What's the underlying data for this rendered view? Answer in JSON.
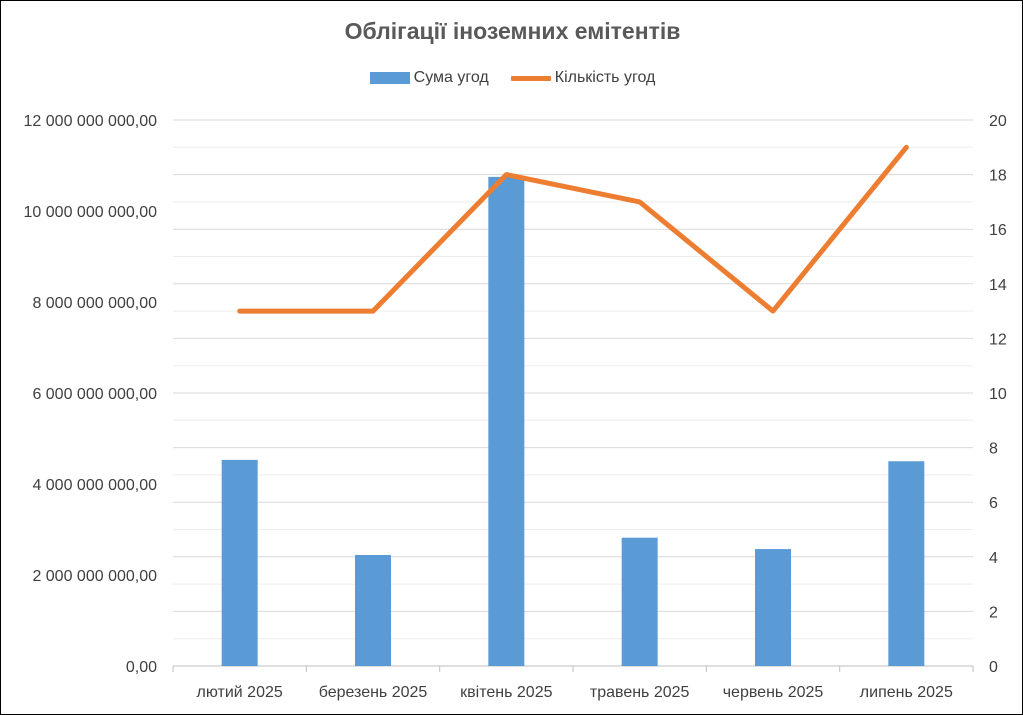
{
  "chart_data": {
    "type": "bar",
    "title": "Облігації іноземних емітентів",
    "categories": [
      "лютий 2025",
      "березень 2025",
      "квітень 2025",
      "травень 2025",
      "червень 2025",
      "липень 2025"
    ],
    "series": [
      {
        "name": "Сума угод",
        "type": "bar",
        "axis": "left",
        "color": "#5B9BD5",
        "values": [
          4530000000,
          2440000000,
          10750000000,
          2820000000,
          2570000000,
          4500000000
        ]
      },
      {
        "name": "Кількість угод",
        "type": "line",
        "axis": "right",
        "color": "#ED7D31",
        "values": [
          13,
          13,
          18,
          17,
          13,
          19
        ]
      }
    ],
    "y_left": {
      "lim": [
        0,
        12000000000
      ],
      "ticks": [
        {
          "value": 0,
          "label": "0,00"
        },
        {
          "value": 2000000000,
          "label": "2 000 000 000,00"
        },
        {
          "value": 4000000000,
          "label": "4 000 000 000,00"
        },
        {
          "value": 6000000000,
          "label": "6 000 000 000,00"
        },
        {
          "value": 8000000000,
          "label": "8 000 000 000,00"
        },
        {
          "value": 10000000000,
          "label": "10 000 000 000,00"
        },
        {
          "value": 12000000000,
          "label": "12 000 000 000,00"
        }
      ]
    },
    "y_right": {
      "lim": [
        0,
        20
      ],
      "ticks": [
        {
          "value": 0,
          "label": "0"
        },
        {
          "value": 2,
          "label": "2"
        },
        {
          "value": 4,
          "label": "4"
        },
        {
          "value": 6,
          "label": "6"
        },
        {
          "value": 8,
          "label": "8"
        },
        {
          "value": 10,
          "label": "10"
        },
        {
          "value": 12,
          "label": "12"
        },
        {
          "value": 14,
          "label": "14"
        },
        {
          "value": 16,
          "label": "16"
        },
        {
          "value": 18,
          "label": "18"
        },
        {
          "value": 20,
          "label": "20"
        }
      ]
    },
    "grid": true,
    "legend_position": "top-center",
    "colors": {
      "major_grid": "#D9D9D9",
      "minor_grid": "#EDEDED",
      "axis_line": "#BFBFBF"
    }
  }
}
